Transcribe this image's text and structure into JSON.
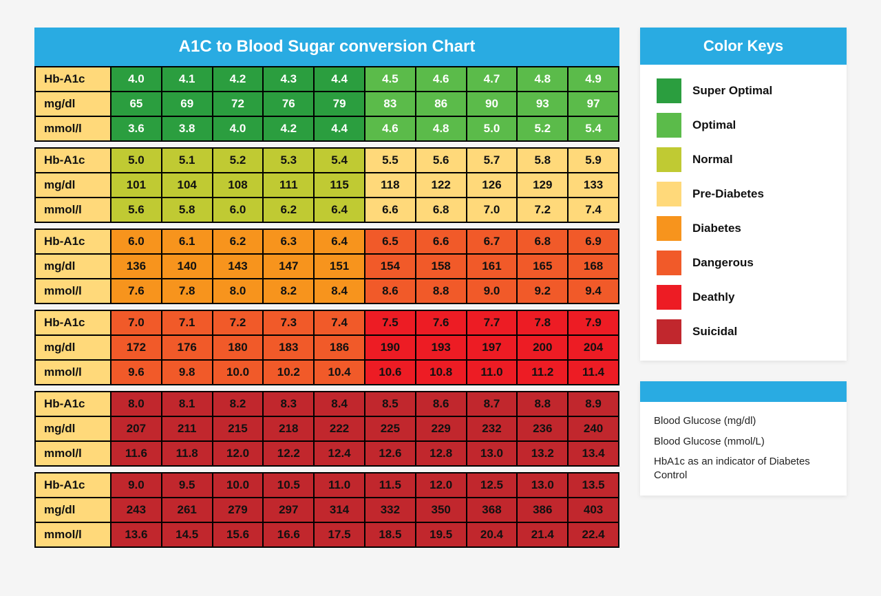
{
  "title": "A1C to Blood Sugar conversion Chart",
  "colors": {
    "title_bg": "#29abe2",
    "label_bg": "#ffd97a",
    "super_optimal": "#2b9e3f",
    "optimal": "#5bbb4a",
    "normal": "#c0ca33",
    "pre_diabetes": "#ffd97a",
    "diabetes": "#f7941d",
    "dangerous": "#f15a29",
    "deathly": "#ed1c24",
    "suicidal": "#c1272d",
    "text_light": "#ffffff",
    "text_dark": "#111111"
  },
  "row_labels": [
    "Hb-A1c",
    "mg/dl",
    "mmol/l"
  ],
  "blocks": [
    {
      "left_color": "super_optimal",
      "right_color": "optimal",
      "text_left": "light",
      "text_right": "light",
      "rows": [
        [
          "4.0",
          "4.1",
          "4.2",
          "4.3",
          "4.4",
          "4.5",
          "4.6",
          "4.7",
          "4.8",
          "4.9"
        ],
        [
          "65",
          "69",
          "72",
          "76",
          "79",
          "83",
          "86",
          "90",
          "93",
          "97"
        ],
        [
          "3.6",
          "3.8",
          "4.0",
          "4.2",
          "4.4",
          "4.6",
          "4.8",
          "5.0",
          "5.2",
          "5.4"
        ]
      ]
    },
    {
      "left_color": "normal",
      "right_color": "pre_diabetes",
      "text_left": "dark",
      "text_right": "dark",
      "rows": [
        [
          "5.0",
          "5.1",
          "5.2",
          "5.3",
          "5.4",
          "5.5",
          "5.6",
          "5.7",
          "5.8",
          "5.9"
        ],
        [
          "101",
          "104",
          "108",
          "111",
          "115",
          "118",
          "122",
          "126",
          "129",
          "133"
        ],
        [
          "5.6",
          "5.8",
          "6.0",
          "6.2",
          "6.4",
          "6.6",
          "6.8",
          "7.0",
          "7.2",
          "7.4"
        ]
      ]
    },
    {
      "left_color": "diabetes",
      "right_color": "dangerous",
      "text_left": "dark",
      "text_right": "dark",
      "rows": [
        [
          "6.0",
          "6.1",
          "6.2",
          "6.3",
          "6.4",
          "6.5",
          "6.6",
          "6.7",
          "6.8",
          "6.9"
        ],
        [
          "136",
          "140",
          "143",
          "147",
          "151",
          "154",
          "158",
          "161",
          "165",
          "168"
        ],
        [
          "7.6",
          "7.8",
          "8.0",
          "8.2",
          "8.4",
          "8.6",
          "8.8",
          "9.0",
          "9.2",
          "9.4"
        ]
      ]
    },
    {
      "left_color": "dangerous",
      "right_color": "deathly",
      "text_left": "dark",
      "text_right": "dark",
      "rows": [
        [
          "7.0",
          "7.1",
          "7.2",
          "7.3",
          "7.4",
          "7.5",
          "7.6",
          "7.7",
          "7.8",
          "7.9"
        ],
        [
          "172",
          "176",
          "180",
          "183",
          "186",
          "190",
          "193",
          "197",
          "200",
          "204"
        ],
        [
          "9.6",
          "9.8",
          "10.0",
          "10.2",
          "10.4",
          "10.6",
          "10.8",
          "11.0",
          "11.2",
          "11.4"
        ]
      ]
    },
    {
      "left_color": "suicidal",
      "right_color": "suicidal",
      "text_left": "dark",
      "text_right": "dark",
      "rows": [
        [
          "8.0",
          "8.1",
          "8.2",
          "8.3",
          "8.4",
          "8.5",
          "8.6",
          "8.7",
          "8.8",
          "8.9"
        ],
        [
          "207",
          "211",
          "215",
          "218",
          "222",
          "225",
          "229",
          "232",
          "236",
          "240"
        ],
        [
          "11.6",
          "11.8",
          "12.0",
          "12.2",
          "12.4",
          "12.6",
          "12.8",
          "13.0",
          "13.2",
          "13.4"
        ]
      ]
    },
    {
      "left_color": "suicidal",
      "right_color": "suicidal",
      "text_left": "dark",
      "text_right": "dark",
      "rows": [
        [
          "9.0",
          "9.5",
          "10.0",
          "10.5",
          "11.0",
          "11.5",
          "12.0",
          "12.5",
          "13.0",
          "13.5"
        ],
        [
          "243",
          "261",
          "279",
          "297",
          "314",
          "332",
          "350",
          "368",
          "386",
          "403"
        ],
        [
          "13.6",
          "14.5",
          "15.6",
          "16.6",
          "17.5",
          "18.5",
          "19.5",
          "20.4",
          "21.4",
          "22.4"
        ]
      ]
    }
  ],
  "legend": {
    "title": "Color Keys",
    "items": [
      {
        "color": "super_optimal",
        "label": "Super Optimal"
      },
      {
        "color": "optimal",
        "label": "Optimal"
      },
      {
        "color": "normal",
        "label": "Normal"
      },
      {
        "color": "pre_diabetes",
        "label": "Pre-Diabetes"
      },
      {
        "color": "diabetes",
        "label": "Diabetes"
      },
      {
        "color": "dangerous",
        "label": "Dangerous"
      },
      {
        "color": "deathly",
        "label": "Deathly"
      },
      {
        "color": "suicidal",
        "label": "Suicidal"
      }
    ]
  },
  "notes": [
    "Blood Glucose (mg/dl)",
    "Blood Glucose (mmol/L)",
    "HbA1c as an indicator of Diabetes Control"
  ]
}
